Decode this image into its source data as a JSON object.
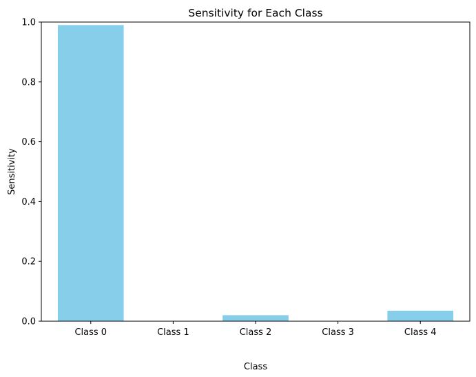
{
  "chart_data": {
    "type": "bar",
    "title": "Sensitivity for Each Class",
    "xlabel": "Class",
    "ylabel": "Sensitivity",
    "categories": [
      "Class 0",
      "Class 1",
      "Class 2",
      "Class 3",
      "Class 4"
    ],
    "values": [
      0.99,
      0.0,
      0.02,
      0.0,
      0.035
    ],
    "ylim": [
      0,
      1.0
    ],
    "yticks": [
      0.0,
      0.2,
      0.4,
      0.6,
      0.8,
      1.0
    ],
    "ytick_labels": [
      "0.0",
      "0.2",
      "0.4",
      "0.6",
      "0.8",
      "1.0"
    ],
    "bar_color": "#87ceeb",
    "grid": false,
    "legend": "none"
  }
}
